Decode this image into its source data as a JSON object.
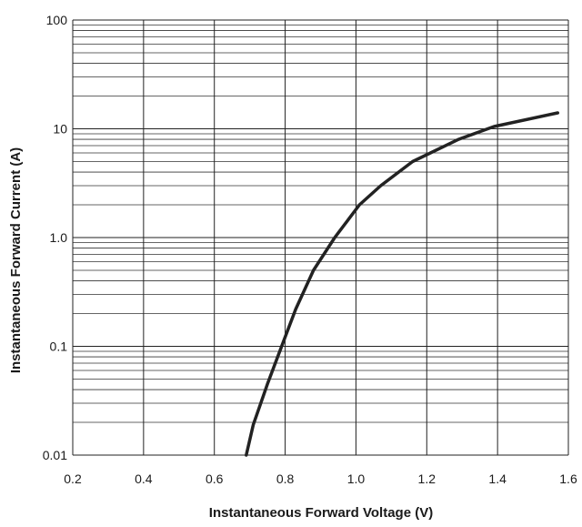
{
  "chart_data": {
    "type": "line",
    "title": "",
    "xlabel": "Instantaneous  Forward Voltage (V)",
    "ylabel": "Instantaneous  Forward Current (A)",
    "xlim": [
      0.2,
      1.6
    ],
    "ylim": [
      0.01,
      100
    ],
    "y_scale": "log",
    "grid": true,
    "x_tick_labels": [
      "0.2",
      "0.4",
      "0.6",
      "0.8",
      "1.0",
      "1.2",
      "1.4",
      "1.6"
    ],
    "x_ticks": [
      0.2,
      0.4,
      0.6,
      0.8,
      1.0,
      1.2,
      1.4,
      1.6
    ],
    "y_tick_labels": [
      "100",
      "10",
      "1.0",
      "0.1",
      "0.01"
    ],
    "y_ticks": [
      100,
      10,
      1,
      0.1,
      0.01
    ],
    "series": [
      {
        "x": [
          0.69,
          0.71,
          0.75,
          0.79,
          0.83,
          0.88,
          0.94,
          1.01,
          1.07,
          1.16,
          1.29,
          1.39,
          1.57
        ],
        "y": [
          0.01,
          0.019,
          0.045,
          0.1,
          0.22,
          0.5,
          1.0,
          2.0,
          3.0,
          5.0,
          8.0,
          10.5,
          14.0
        ],
        "color": "#222222"
      }
    ]
  }
}
